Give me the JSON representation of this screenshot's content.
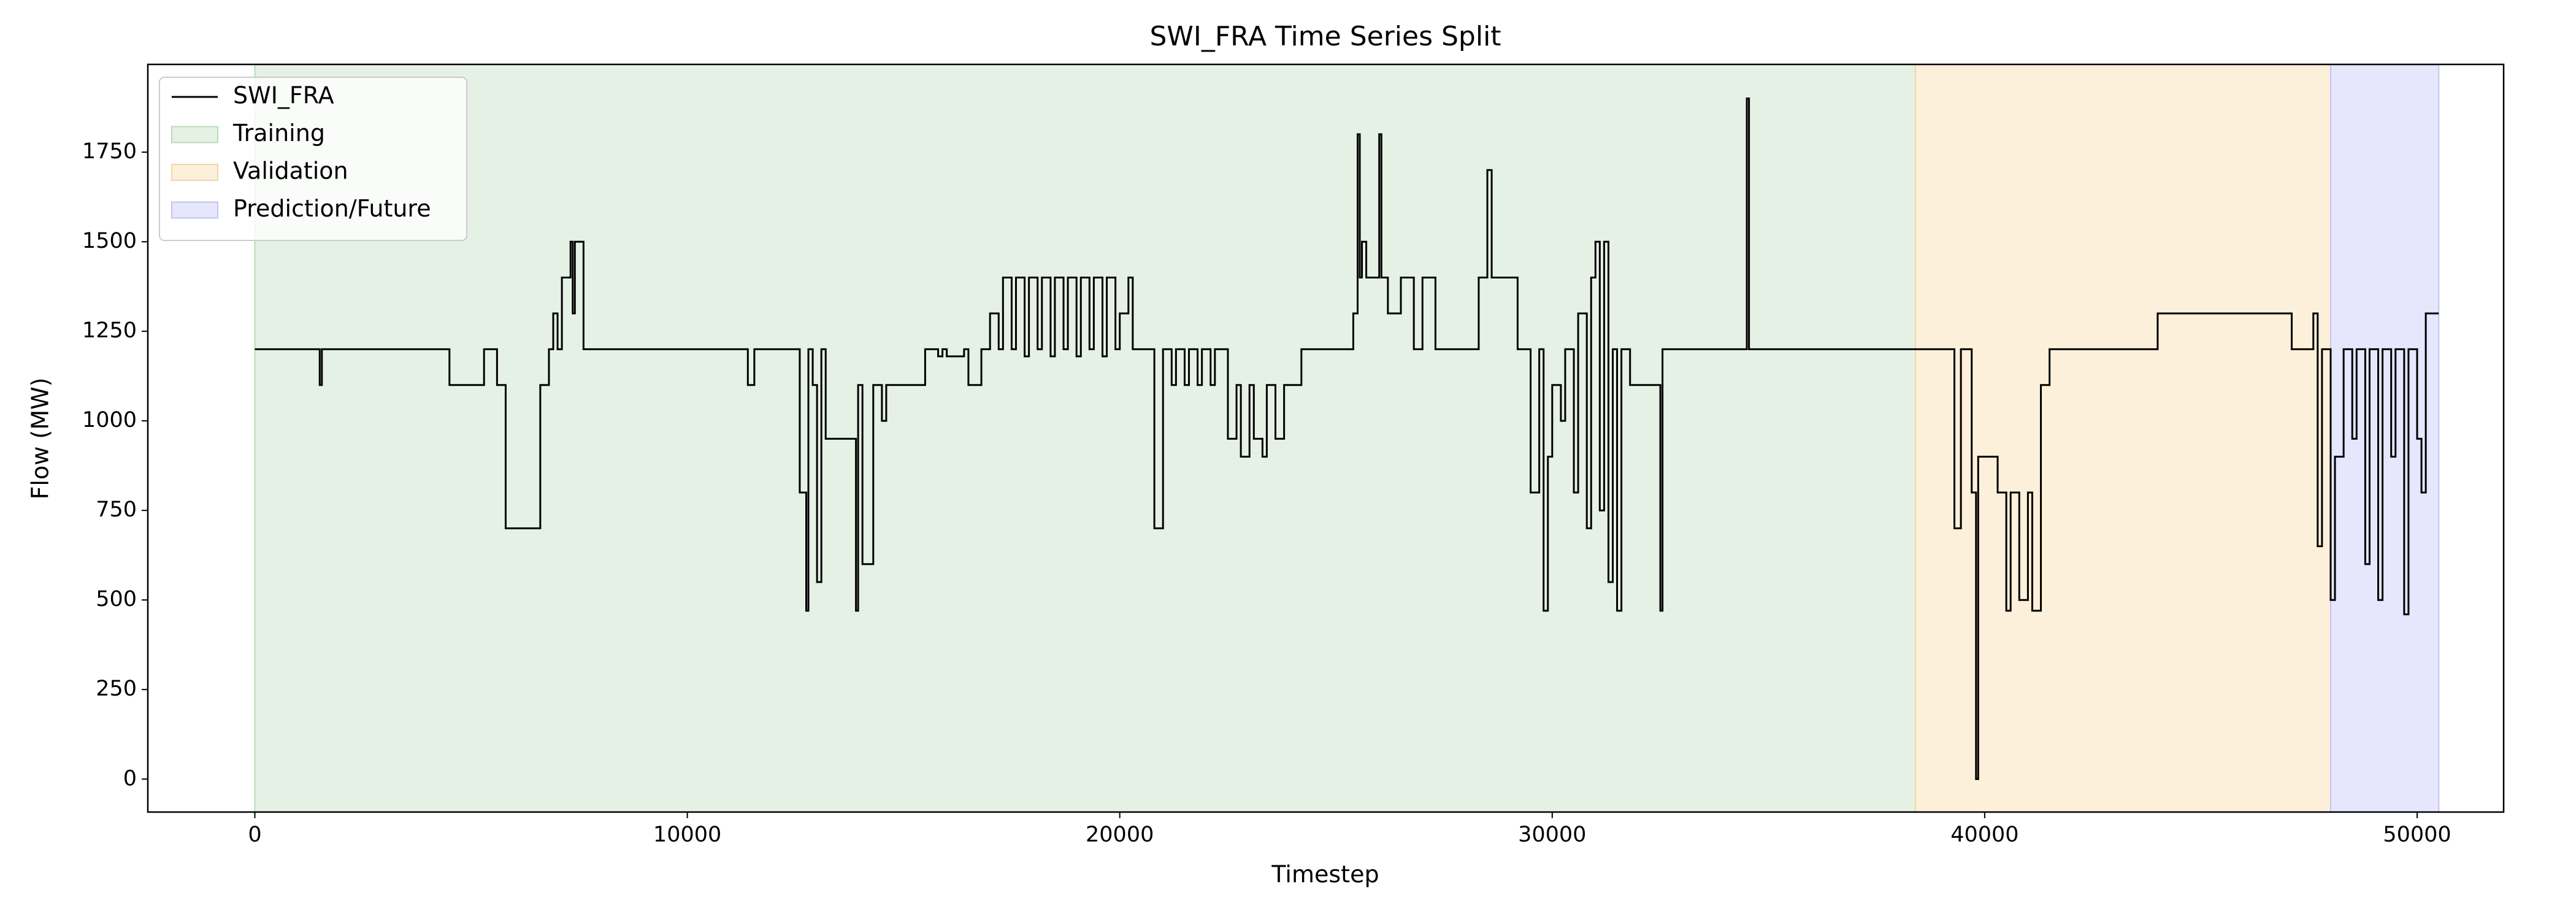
{
  "chart_data": {
    "type": "line",
    "title": "SWI_FRA Time Series Split",
    "xlabel": "Timestep",
    "ylabel": "Flow (MW)",
    "step": "post",
    "legend": "upper left",
    "xlim": [
      -2475,
      52000
    ],
    "ylim": [
      -92,
      1995
    ],
    "xticks": [
      0,
      10000,
      20000,
      30000,
      40000,
      50000
    ],
    "yticks": [
      0,
      250,
      500,
      750,
      1000,
      1250,
      1500,
      1750
    ],
    "spans": [
      {
        "name": "Training",
        "color": "#e5f1e5",
        "edge": "#b9dcb9",
        "start": 0,
        "end": 38400
      },
      {
        "name": "Validation",
        "color": "#fdf0da",
        "edge": "#f3d6a8",
        "start": 38400,
        "end": 48000
      },
      {
        "name": "Prediction/Future",
        "color": "#e6e6fd",
        "edge": "#c3c3f3",
        "start": 48000,
        "end": 50500
      }
    ],
    "x": [
      0,
      1500,
      1550,
      4500,
      5300,
      5600,
      5800,
      6600,
      6800,
      6900,
      7000,
      7100,
      7300,
      7350,
      7400,
      7600,
      11400,
      11550,
      12600,
      12750,
      12800,
      12900,
      13000,
      13100,
      13200,
      13900,
      13950,
      14050,
      14300,
      14500,
      14600,
      15500,
      15800,
      15900,
      16000,
      16400,
      16500,
      16800,
      17000,
      17200,
      17300,
      17500,
      17600,
      17800,
      17900,
      18100,
      18200,
      18400,
      18500,
      18700,
      18800,
      19000,
      19100,
      19300,
      19400,
      19600,
      19700,
      19900,
      20000,
      20200,
      20300,
      20500,
      20800,
      21000,
      21200,
      21300,
      21500,
      21600,
      21800,
      21900,
      22100,
      22200,
      22500,
      22700,
      22800,
      23000,
      23100,
      23300,
      23400,
      23600,
      23800,
      24200,
      25400,
      25500,
      25550,
      25600,
      25700,
      26000,
      26050,
      26200,
      26500,
      26800,
      27000,
      27300,
      28300,
      28500,
      28600,
      29200,
      29500,
      29700,
      29800,
      29900,
      30000,
      30200,
      30300,
      30500,
      30600,
      30800,
      30900,
      31000,
      31100,
      31200,
      31300,
      31400,
      31500,
      31600,
      31800,
      32500,
      32550,
      34500,
      34550,
      38400,
      39300,
      39450,
      39700,
      39800,
      39850,
      40300,
      40500,
      40600,
      40800,
      41000,
      41100,
      41300,
      41500,
      44000,
      47100,
      47600,
      47700,
      47800,
      48000,
      48100,
      48300,
      48500,
      48600,
      48800,
      48900,
      49100,
      49200,
      49400,
      49500,
      49700,
      49800,
      50000,
      50100,
      50200,
      50500
    ],
    "series": [
      {
        "name": "SWI_FRA",
        "color": "#000000",
        "values": [
          1200,
          1100,
          1200,
          1100,
          1200,
          1100,
          700,
          1100,
          1200,
          1300,
          1200,
          1400,
          1500,
          1300,
          1500,
          1200,
          1100,
          1200,
          800,
          470,
          1200,
          1100,
          550,
          1200,
          950,
          470,
          1100,
          600,
          1100,
          1000,
          1100,
          1200,
          1180,
          1200,
          1180,
          1200,
          1100,
          1200,
          1300,
          1200,
          1400,
          1200,
          1400,
          1180,
          1400,
          1200,
          1400,
          1180,
          1400,
          1200,
          1400,
          1180,
          1400,
          1200,
          1400,
          1180,
          1400,
          1200,
          1300,
          1400,
          1200,
          1200,
          700,
          1200,
          1100,
          1200,
          1100,
          1200,
          1100,
          1200,
          1100,
          1200,
          950,
          1100,
          900,
          1100,
          950,
          900,
          1100,
          950,
          1100,
          1200,
          1300,
          1800,
          1400,
          1500,
          1400,
          1800,
          1400,
          1300,
          1400,
          1200,
          1400,
          1200,
          1400,
          1700,
          1400,
          1200,
          800,
          1200,
          470,
          900,
          1100,
          1000,
          1200,
          800,
          1300,
          700,
          1400,
          1500,
          750,
          1500,
          550,
          1200,
          470,
          1200,
          1100,
          470,
          1200,
          1900,
          1200,
          1200,
          700,
          1200,
          800,
          0,
          900,
          800,
          470,
          800,
          500,
          800,
          470,
          1100,
          1200,
          1300,
          1200,
          1300,
          650,
          1200,
          500,
          900,
          1200,
          950,
          1200,
          600,
          1200,
          500,
          1200,
          900,
          1200,
          460,
          1200,
          950,
          800,
          1300,
          1300
        ]
      }
    ]
  }
}
